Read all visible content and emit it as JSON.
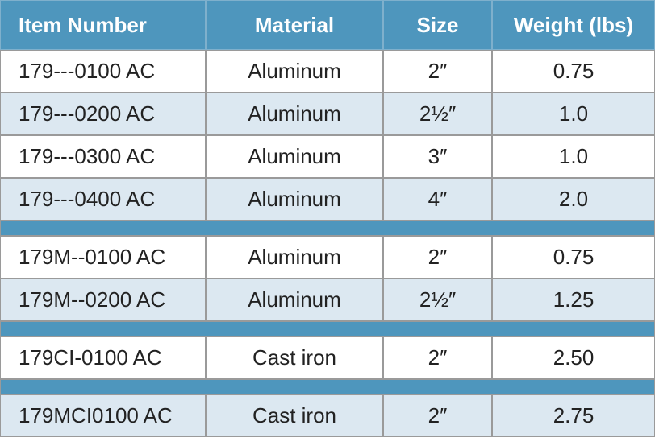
{
  "table": {
    "header": [
      "Item Number",
      "Material",
      "Size",
      "Weight (lbs)"
    ],
    "groups": [
      [
        [
          "179---0100 AC",
          "Aluminum",
          "2″",
          "0.75"
        ],
        [
          "179---0200 AC",
          "Aluminum",
          "2½″",
          "1.0"
        ],
        [
          "179---0300 AC",
          "Aluminum",
          "3″",
          "1.0"
        ],
        [
          "179---0400 AC",
          "Aluminum",
          "4″",
          "2.0"
        ]
      ],
      [
        [
          "179M--0100 AC",
          "Aluminum",
          "2″",
          "0.75"
        ],
        [
          "179M--0200 AC",
          "Aluminum",
          "2½″",
          "1.25"
        ]
      ],
      [
        [
          "179CI-0100 AC",
          "Cast iron",
          "2″",
          "2.50"
        ]
      ],
      [
        [
          "179MCI0100 AC",
          "Cast iron",
          "2″",
          "2.75"
        ]
      ]
    ]
  }
}
